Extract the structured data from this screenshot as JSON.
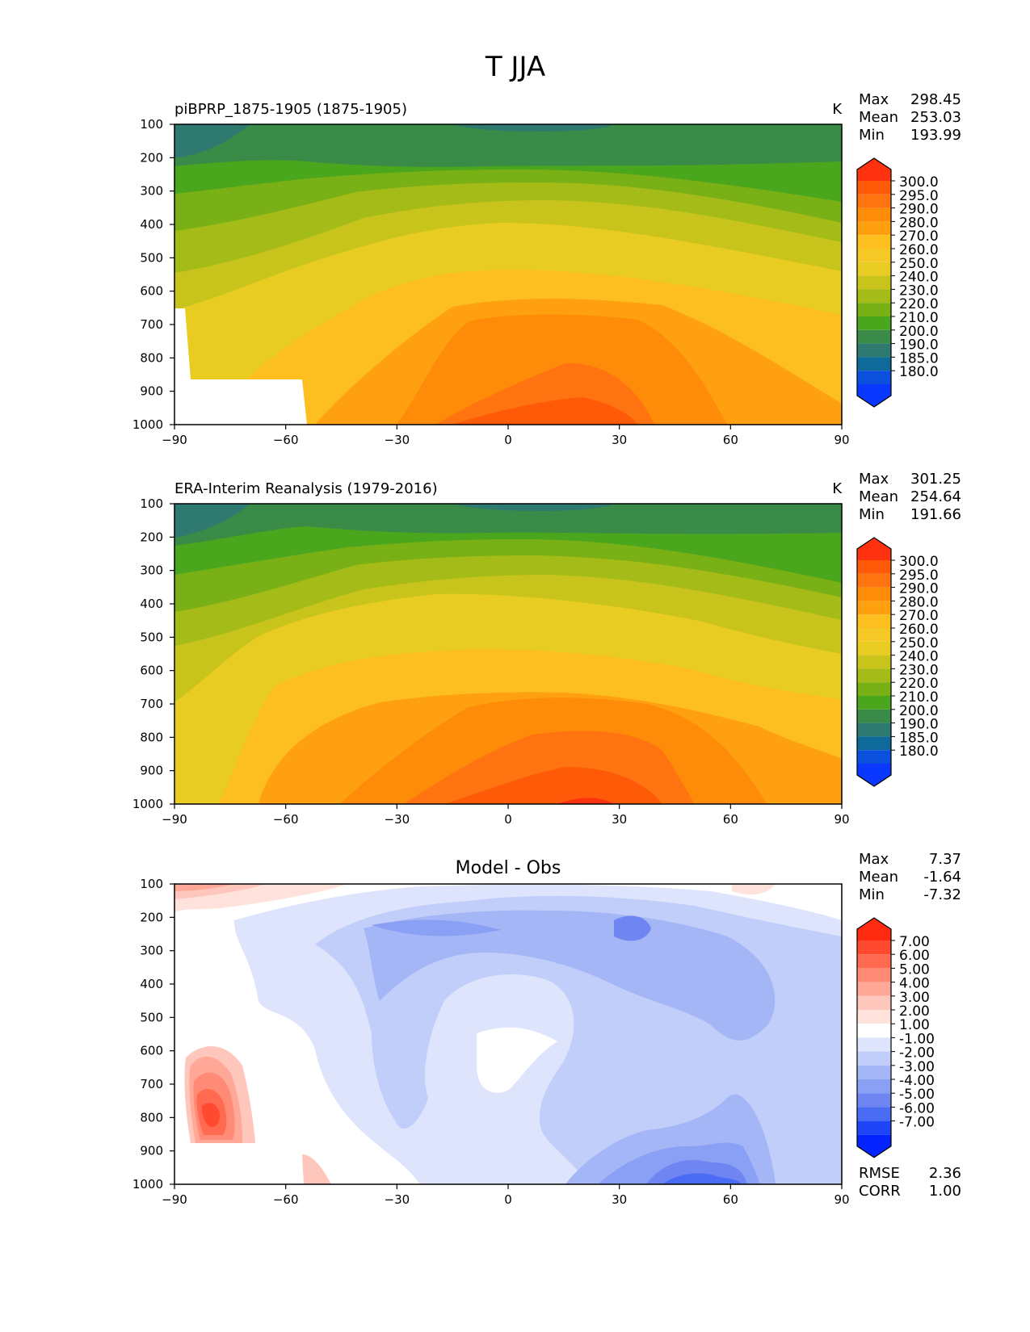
{
  "figure": {
    "title": "T JJA"
  },
  "chart_data": [
    {
      "type": "contour",
      "title": "piBPRP_1875-1905 (1875-1905)",
      "units": "K",
      "xlim": [
        -90,
        90
      ],
      "ylim": [
        1000,
        100
      ],
      "xticks": [
        "−90",
        "−60",
        "−30",
        "0",
        "30",
        "60",
        "90"
      ],
      "yticks": [
        "100",
        "200",
        "300",
        "400",
        "500",
        "600",
        "700",
        "800",
        "900",
        "1000"
      ],
      "stats": [
        {
          "label": "Max",
          "value": "298.45"
        },
        {
          "label": "Mean",
          "value": "253.03"
        },
        {
          "label": "Min",
          "value": "193.99"
        }
      ],
      "colorbar": {
        "levels": [
          "300.0",
          "295.0",
          "290.0",
          "280.0",
          "270.0",
          "260.0",
          "250.0",
          "240.0",
          "230.0",
          "220.0",
          "210.0",
          "200.0",
          "190.0",
          "185.0",
          "180.0"
        ],
        "colors": [
          "#ff3210",
          "#ff5a08",
          "#ff7310",
          "#ff8c08",
          "#ffa010",
          "#fdbe20",
          "#f5c828",
          "#e8cc22",
          "#c8c41c",
          "#a4bb18",
          "#79b015",
          "#4aa61d",
          "#3a8a48",
          "#2f7a70",
          "#0e6a98",
          "#0a50dc",
          "#0a38ff"
        ]
      },
      "missing_region": "south of ~55S below ~870 hPa"
    },
    {
      "type": "contour",
      "title": "ERA-Interim Reanalysis (1979-2016)",
      "units": "K",
      "xlim": [
        -90,
        90
      ],
      "ylim": [
        1000,
        100
      ],
      "xticks": [
        "−90",
        "−60",
        "−30",
        "0",
        "30",
        "60",
        "90"
      ],
      "yticks": [
        "100",
        "200",
        "300",
        "400",
        "500",
        "600",
        "700",
        "800",
        "900",
        "1000"
      ],
      "stats": [
        {
          "label": "Max",
          "value": "301.25"
        },
        {
          "label": "Mean",
          "value": "254.64"
        },
        {
          "label": "Min",
          "value": "191.66"
        }
      ],
      "colorbar": {
        "levels": [
          "300.0",
          "295.0",
          "290.0",
          "280.0",
          "270.0",
          "260.0",
          "250.0",
          "240.0",
          "230.0",
          "220.0",
          "210.0",
          "200.0",
          "190.0",
          "185.0",
          "180.0"
        ],
        "colors": [
          "#ff3210",
          "#ff5a08",
          "#ff7310",
          "#ff8c08",
          "#ffa010",
          "#fdbe20",
          "#f5c828",
          "#e8cc22",
          "#c8c41c",
          "#a4bb18",
          "#79b015",
          "#4aa61d",
          "#3a8a48",
          "#2f7a70",
          "#0e6a98",
          "#0a50dc",
          "#0a38ff"
        ]
      }
    },
    {
      "type": "contour",
      "title": "Model - Obs",
      "units": "",
      "xlim": [
        -90,
        90
      ],
      "ylim": [
        1000,
        100
      ],
      "xticks": [
        "−90",
        "−60",
        "−30",
        "0",
        "30",
        "60",
        "90"
      ],
      "yticks": [
        "100",
        "200",
        "300",
        "400",
        "500",
        "600",
        "700",
        "800",
        "900",
        "1000"
      ],
      "stats": [
        {
          "label": "Max",
          "value": "7.37"
        },
        {
          "label": "Mean",
          "value": "-1.64"
        },
        {
          "label": "Min",
          "value": "-7.32"
        }
      ],
      "extra_stats": [
        {
          "label": "RMSE",
          "value": "2.36"
        },
        {
          "label": "CORR",
          "value": "1.00"
        }
      ],
      "colorbar": {
        "levels": [
          "7.00",
          "6.00",
          "5.00",
          "4.00",
          "3.00",
          "2.00",
          "1.00",
          "-1.00",
          "-2.00",
          "-3.00",
          "-4.00",
          "-5.00",
          "-6.00",
          "-7.00"
        ],
        "colors": [
          "#ff2a10",
          "#ff4a30",
          "#ff6a50",
          "#ff8a76",
          "#ffa898",
          "#ffc6bc",
          "#ffe2dc",
          "#ffffff",
          "#dde4fc",
          "#c2cefa",
          "#a4b6f6",
          "#8aa0f4",
          "#6f86f2",
          "#4a6cf4",
          "#1e46f8",
          "#0424ff"
        ]
      }
    }
  ]
}
